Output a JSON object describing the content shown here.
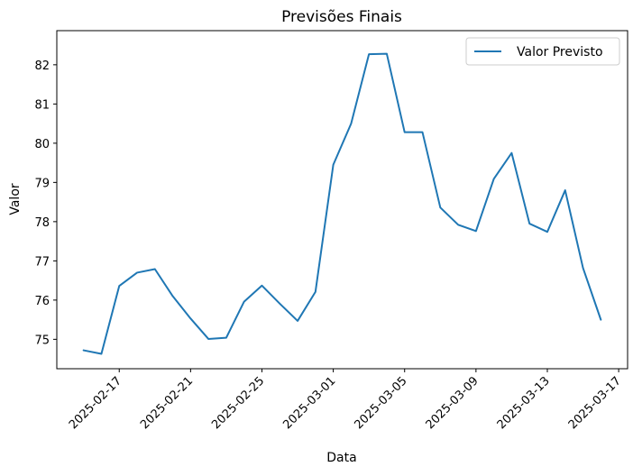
{
  "chart_data": {
    "type": "line",
    "title": "Previsões Finais",
    "xlabel": "Data",
    "ylabel": "Valor",
    "x": [
      "2025-02-15",
      "2025-02-16",
      "2025-02-17",
      "2025-02-18",
      "2025-02-19",
      "2025-02-20",
      "2025-02-21",
      "2025-02-22",
      "2025-02-23",
      "2025-02-24",
      "2025-02-25",
      "2025-02-26",
      "2025-02-27",
      "2025-02-28",
      "2025-03-01",
      "2025-03-02",
      "2025-03-03",
      "2025-03-04",
      "2025-03-05",
      "2025-03-06",
      "2025-03-07",
      "2025-03-08",
      "2025-03-09",
      "2025-03-10",
      "2025-03-11",
      "2025-03-12",
      "2025-03-13",
      "2025-03-14",
      "2025-03-15",
      "2025-03-16"
    ],
    "series": [
      {
        "name": "Valor Previsto",
        "color": "#1f77b4",
        "values": [
          74.72,
          74.63,
          76.36,
          76.7,
          76.79,
          76.1,
          75.53,
          75.01,
          75.04,
          75.96,
          76.37,
          75.91,
          75.47,
          76.21,
          79.45,
          80.5,
          82.27,
          82.28,
          80.28,
          80.28,
          78.36,
          77.92,
          77.76,
          79.09,
          79.75,
          77.95,
          77.74,
          78.8,
          76.82,
          75.5
        ]
      }
    ],
    "xticks": [
      "2025-02-17",
      "2025-02-21",
      "2025-02-25",
      "2025-03-01",
      "2025-03-05",
      "2025-03-09",
      "2025-03-13",
      "2025-03-17"
    ],
    "yticks": [
      75,
      76,
      77,
      78,
      79,
      80,
      81,
      82
    ],
    "xlim": [
      "2025-02-13T12:00",
      "2025-03-17T12:00"
    ],
    "ylim": [
      74.25,
      82.87
    ],
    "grid": false,
    "legend_position": "upper right"
  }
}
